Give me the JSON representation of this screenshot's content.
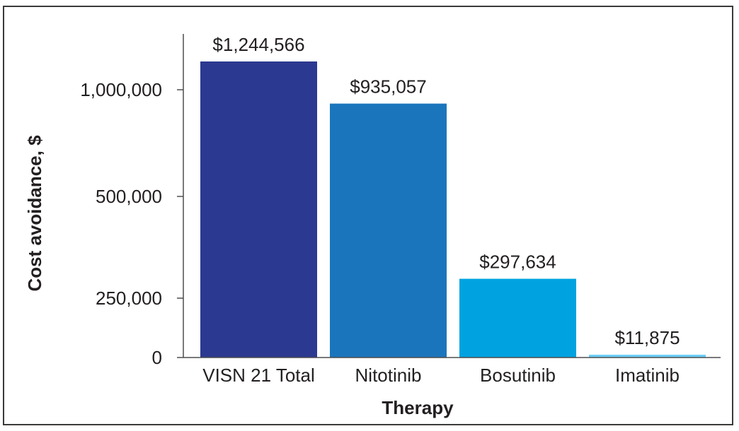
{
  "chart_data": {
    "type": "bar",
    "title": "",
    "xlabel": "Therapy",
    "ylabel": "Cost avoidance, $",
    "categories": [
      "VISN 21 Total",
      "Nitotinib",
      "Bosutinib",
      "Imatinib"
    ],
    "values": [
      1244566,
      935057,
      297634,
      11875
    ],
    "data_labels": [
      "$1,244,566",
      "$935,057",
      "$297,634",
      "$11,875"
    ],
    "bar_colors": [
      "#2b3990",
      "#1b75bc",
      "#00a3e0",
      "#6dcff6"
    ],
    "y_ticks": [
      0,
      250000,
      500000,
      1000000
    ],
    "y_tick_labels": [
      "0",
      "250,000",
      "500,000",
      "1,000,000"
    ],
    "ylim": [
      0,
      1250000
    ],
    "grid": false,
    "legend": "none"
  }
}
